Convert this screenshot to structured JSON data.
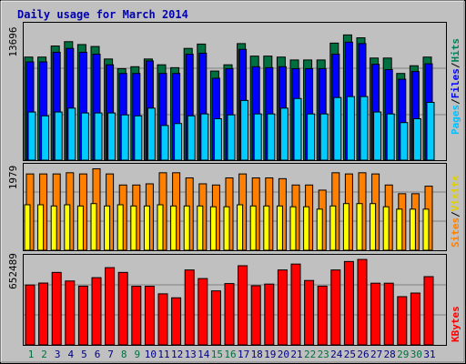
{
  "title": "Daily usage for March 2014",
  "colors": {
    "background": "#c0c0c0",
    "title": "#0000b0",
    "hits": "#007040",
    "files": "#0000ff",
    "pages": "#00ccff",
    "sites": "#ff8000",
    "visits": "#ffff00",
    "kbytes": "#ff0000",
    "weekday_label": "#000080",
    "weekend_label": "#007040",
    "hits_label": "#00805a",
    "files_label": "#0000ff",
    "pages_label": "#00c0ff",
    "sites_label": "#ff8000",
    "visits_label": "#e0d000",
    "kbytes_label": "#ff0000"
  },
  "labels": {
    "hits": "Hits",
    "files": "Files",
    "pages": "Pages",
    "sites": "Sites",
    "visits": "Visits",
    "kbytes": "KBytes",
    "separator": "/"
  },
  "chart_data": [
    {
      "type": "bar",
      "panel": "hits-files-pages",
      "y_max_label": "13696",
      "ylim": [
        0,
        13696
      ],
      "categories": [
        "1",
        "2",
        "3",
        "4",
        "5",
        "6",
        "7",
        "8",
        "9",
        "10",
        "11",
        "12",
        "13",
        "14",
        "15",
        "16",
        "17",
        "18",
        "19",
        "20",
        "21",
        "22",
        "23",
        "24",
        "25",
        "26",
        "27",
        "28",
        "29",
        "30",
        "31"
      ],
      "series": [
        {
          "name": "Hits",
          "values": [
            10700,
            10700,
            11850,
            12300,
            12000,
            11800,
            10500,
            9500,
            9700,
            10500,
            9900,
            9600,
            11600,
            12050,
            9250,
            9900,
            12100,
            10800,
            10800,
            10700,
            10400,
            10400,
            10400,
            12150,
            13000,
            12700,
            10600,
            10600,
            9000,
            9800,
            10700
          ]
        },
        {
          "name": "Files",
          "values": [
            10200,
            10200,
            11200,
            11600,
            11200,
            11000,
            9900,
            9000,
            9000,
            10300,
            9000,
            9000,
            11000,
            11100,
            8500,
            9500,
            11500,
            9700,
            9600,
            9700,
            9500,
            9500,
            9500,
            11000,
            12250,
            12100,
            9950,
            9400,
            8400,
            9200,
            10000
          ]
        },
        {
          "name": "Pages",
          "values": [
            5000,
            4600,
            5000,
            5400,
            4900,
            4900,
            4900,
            4700,
            4600,
            5400,
            3600,
            3800,
            4600,
            4800,
            4300,
            4700,
            6200,
            4800,
            4800,
            5400,
            6400,
            4800,
            4800,
            6500,
            6600,
            6600,
            5000,
            4800,
            3900,
            4300,
            6000
          ]
        }
      ],
      "ylabel": ""
    },
    {
      "type": "bar",
      "panel": "sites-visits",
      "y_max_label": "1979",
      "ylim": [
        0,
        1979
      ],
      "categories": [
        "1",
        "2",
        "3",
        "4",
        "5",
        "6",
        "7",
        "8",
        "9",
        "10",
        "11",
        "12",
        "13",
        "14",
        "15",
        "16",
        "17",
        "18",
        "19",
        "20",
        "21",
        "22",
        "23",
        "24",
        "25",
        "26",
        "27",
        "28",
        "29",
        "30",
        "31"
      ],
      "series": [
        {
          "name": "Sites",
          "values": [
            1930,
            1930,
            1930,
            1960,
            1930,
            2060,
            1930,
            1650,
            1650,
            1680,
            1960,
            1960,
            1830,
            1680,
            1650,
            1830,
            1930,
            1830,
            1830,
            1810,
            1650,
            1650,
            1520,
            1960,
            1930,
            1960,
            1930,
            1650,
            1430,
            1430,
            1620
          ]
        },
        {
          "name": "Visits",
          "values": [
            1150,
            1150,
            1120,
            1150,
            1120,
            1180,
            1120,
            1150,
            1120,
            1120,
            1150,
            1120,
            1120,
            1120,
            1100,
            1100,
            1150,
            1120,
            1120,
            1120,
            1100,
            1100,
            1040,
            1120,
            1180,
            1180,
            1180,
            1100,
            1040,
            1040,
            1040
          ]
        }
      ]
    },
    {
      "type": "bar",
      "panel": "kbytes",
      "y_max_label": "652489",
      "ylim": [
        0,
        652489
      ],
      "categories": [
        "1",
        "2",
        "3",
        "4",
        "5",
        "6",
        "7",
        "8",
        "9",
        "10",
        "11",
        "12",
        "13",
        "14",
        "15",
        "16",
        "17",
        "18",
        "19",
        "20",
        "21",
        "22",
        "23",
        "24",
        "25",
        "26",
        "27",
        "28",
        "29",
        "30",
        "31"
      ],
      "series": [
        {
          "name": "KBytes",
          "values": [
            467000,
            482000,
            565000,
            498000,
            458000,
            524000,
            602000,
            565000,
            457000,
            457000,
            398000,
            367000,
            584000,
            517000,
            421000,
            478000,
            617000,
            461000,
            474000,
            584000,
            630000,
            502000,
            458000,
            584000,
            650000,
            666000,
            481000,
            481000,
            376000,
            404000,
            532000
          ]
        }
      ]
    }
  ]
}
